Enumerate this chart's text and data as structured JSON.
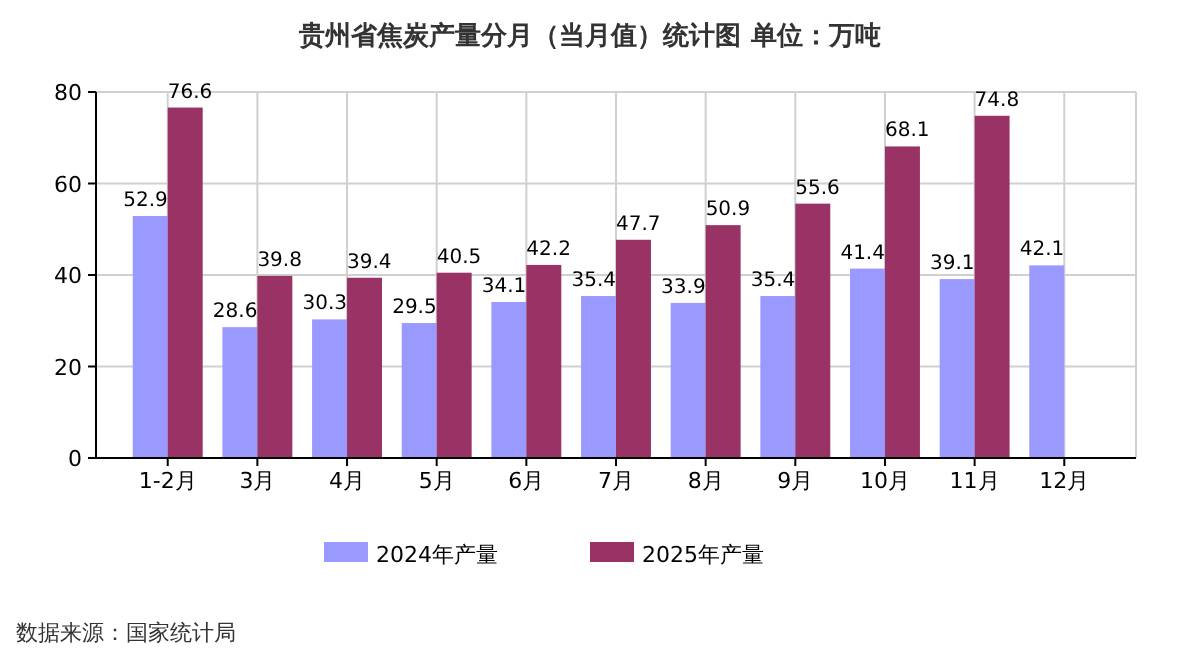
{
  "chart_data": {
    "type": "bar",
    "title": "贵州省焦炭产量分月（当月值）统计图 单位：万吨",
    "categories": [
      "1-2月",
      "3月",
      "4月",
      "5月",
      "6月",
      "7月",
      "8月",
      "9月",
      "10月",
      "11月",
      "12月"
    ],
    "series": [
      {
        "name": "2024年产量",
        "color": "#9999ff",
        "values": [
          52.9,
          28.6,
          30.3,
          29.5,
          34.1,
          35.4,
          33.9,
          35.4,
          41.4,
          39.1,
          42.1
        ]
      },
      {
        "name": "2025年产量",
        "color": "#993366",
        "values": [
          76.6,
          39.8,
          39.4,
          40.5,
          42.2,
          47.7,
          50.9,
          55.6,
          68.1,
          74.8,
          null
        ]
      }
    ],
    "ylim": [
      0,
      80
    ],
    "yticks": [
      0,
      20,
      40,
      60,
      80
    ],
    "grid": true,
    "legend": "bottom",
    "data_labels": true,
    "annotations": [
      "数据来源：国家统计局"
    ]
  }
}
